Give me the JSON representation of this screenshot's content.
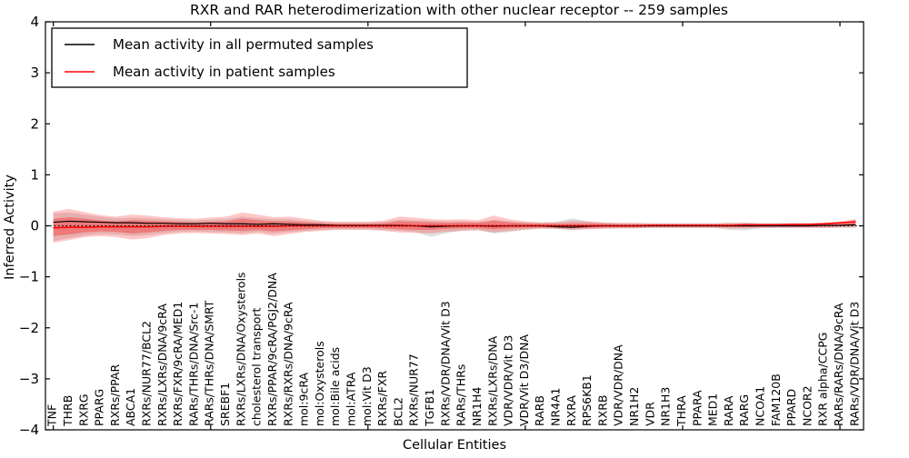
{
  "chart_data": {
    "type": "line",
    "title": "RXR and RAR heterodimerization with other nuclear receptor -- 259 samples",
    "xlabel": "Cellular Entities",
    "ylabel": "Inferred Activity",
    "ylim": [
      -4,
      4
    ],
    "yticks": [
      -4,
      -3,
      -2,
      -1,
      0,
      1,
      2,
      3,
      4
    ],
    "xtick_every": 10,
    "grid": false,
    "legend": {
      "position": "upper left",
      "entries": [
        {
          "label": "Mean activity in all permuted samples",
          "color": "#000000"
        },
        {
          "label": "Mean activity in patient samples",
          "color": "#ff0000"
        }
      ]
    },
    "zero_line": {
      "style": "dotted",
      "color": "#000000",
      "y": 0
    },
    "categories": [
      "TNF",
      "THRB",
      "RXRG",
      "PPARG",
      "RXRs/PPAR",
      "ABCA1",
      "RXRs/NUR77/BCL2",
      "RXRs/LXRs/DNA/9cRA",
      "RXRs/FXR/9cRA/MED1",
      "RARs/THRs/DNA/Src-1",
      "RARs/THRs/DNA/SMRT",
      "SREBF1",
      "RXRs/LXRs/DNA/Oxysterols",
      "cholesterol transport",
      "RXRs/PPAR/9cRA/PGJ2/DNA",
      "RXRs/RXRs/DNA/9cRA",
      "mol:9cRA",
      "mol:Oxysterols",
      "mol:Bile acids",
      "mol:ATRA",
      "mol:Vit D3",
      "RXRs/FXR",
      "BCL2",
      "RXRs/NUR77",
      "TGFB1",
      "RXRs/VDR/DNA/Vit D3",
      "RARs/THRs",
      "NR1H4",
      "RXRs/LXRs/DNA",
      "VDR/VDR/Vit D3",
      "VDR/Vit D3/DNA",
      "RARB",
      "NR4A1",
      "RXRA",
      "RPS6KB1",
      "RXRB",
      "VDR/VDR/DNA",
      "NR1H2",
      "VDR",
      "NR1H3",
      "THRA",
      "PPARA",
      "MED1",
      "RARA",
      "RARG",
      "NCOA1",
      "FAM120B",
      "PPARD",
      "NCOR2",
      "RXR alpha/CCPG",
      "RARs/RARs/DNA/9cRA",
      "RARs/VDR/DNA/Vit D3"
    ],
    "series": [
      {
        "name": "Mean activity in all permuted samples",
        "color": "#000000",
        "width": 1.2,
        "values": [
          0.07,
          0.09,
          0.08,
          0.07,
          0.06,
          0.06,
          0.05,
          0.05,
          0.04,
          0.04,
          0.05,
          0.04,
          0.04,
          0.03,
          0.04,
          0.03,
          0.02,
          0.02,
          0.01,
          0.01,
          0.01,
          0.01,
          0.01,
          0.0,
          -0.02,
          -0.01,
          0.0,
          0.0,
          -0.01,
          0.0,
          0.0,
          0.0,
          -0.02,
          -0.03,
          -0.01,
          0.0,
          0.0,
          0.0,
          0.0,
          0.0,
          0.0,
          0.0,
          0.0,
          0.0,
          0.0,
          0.0,
          0.0,
          0.0,
          0.0,
          0.01,
          0.01,
          0.02
        ]
      },
      {
        "name": "Mean activity in patient samples",
        "color": "#ff0000",
        "width": 1.5,
        "values": [
          -0.04,
          -0.03,
          -0.03,
          -0.02,
          -0.02,
          -0.02,
          -0.02,
          -0.01,
          -0.01,
          -0.01,
          -0.01,
          -0.01,
          -0.01,
          -0.01,
          -0.01,
          0.0,
          0.0,
          0.0,
          0.0,
          0.0,
          0.0,
          0.0,
          0.0,
          0.0,
          0.0,
          0.0,
          0.0,
          0.0,
          0.0,
          0.0,
          0.0,
          0.0,
          0.0,
          0.0,
          0.0,
          0.0,
          0.0,
          0.0,
          0.01,
          0.01,
          0.01,
          0.01,
          0.01,
          0.01,
          0.02,
          0.02,
          0.02,
          0.03,
          0.03,
          0.04,
          0.06,
          0.08
        ]
      }
    ],
    "bands": [
      {
        "name": "permuted-samples-range",
        "color": "#999999",
        "opacity": 0.3,
        "upper": [
          0.25,
          0.26,
          0.22,
          0.18,
          0.15,
          0.16,
          0.15,
          0.13,
          0.12,
          0.11,
          0.12,
          0.13,
          0.18,
          0.15,
          0.13,
          0.13,
          0.1,
          0.08,
          0.07,
          0.07,
          0.07,
          0.08,
          0.12,
          0.11,
          0.1,
          0.09,
          0.09,
          0.08,
          0.12,
          0.09,
          0.07,
          0.06,
          0.08,
          0.15,
          0.08,
          0.06,
          0.05,
          0.05,
          0.05,
          0.05,
          0.05,
          0.05,
          0.05,
          0.06,
          0.06,
          0.05,
          0.05,
          0.05,
          0.05,
          0.05,
          0.05,
          0.06
        ],
        "lower": [
          -0.3,
          -0.24,
          -0.19,
          -0.16,
          -0.17,
          -0.2,
          -0.18,
          -0.14,
          -0.12,
          -0.11,
          -0.12,
          -0.13,
          -0.14,
          -0.12,
          -0.15,
          -0.12,
          -0.1,
          -0.08,
          -0.07,
          -0.07,
          -0.07,
          -0.08,
          -0.1,
          -0.12,
          -0.22,
          -0.14,
          -0.09,
          -0.08,
          -0.15,
          -0.12,
          -0.07,
          -0.05,
          -0.06,
          -0.08,
          -0.06,
          -0.05,
          -0.05,
          -0.05,
          -0.04,
          -0.04,
          -0.04,
          -0.04,
          -0.04,
          -0.08,
          -0.09,
          -0.05,
          -0.04,
          -0.04,
          -0.04,
          -0.04,
          -0.04,
          -0.05
        ]
      },
      {
        "name": "patient-samples-range-outer",
        "color": "#ff0000",
        "opacity": 0.22,
        "upper": [
          0.28,
          0.33,
          0.27,
          0.21,
          0.18,
          0.22,
          0.2,
          0.17,
          0.15,
          0.14,
          0.16,
          0.18,
          0.26,
          0.22,
          0.17,
          0.18,
          0.14,
          0.1,
          0.08,
          0.08,
          0.08,
          0.1,
          0.18,
          0.16,
          0.13,
          0.12,
          0.13,
          0.11,
          0.2,
          0.13,
          0.09,
          0.07,
          0.07,
          0.1,
          0.09,
          0.07,
          0.06,
          0.06,
          0.05,
          0.05,
          0.05,
          0.05,
          0.05,
          0.06,
          0.06,
          0.05,
          0.05,
          0.05,
          0.05,
          0.06,
          0.08,
          0.14
        ],
        "lower": [
          -0.33,
          -0.28,
          -0.22,
          -0.2,
          -0.22,
          -0.27,
          -0.24,
          -0.18,
          -0.15,
          -0.14,
          -0.15,
          -0.16,
          -0.18,
          -0.15,
          -0.2,
          -0.16,
          -0.12,
          -0.1,
          -0.08,
          -0.08,
          -0.08,
          -0.1,
          -0.13,
          -0.14,
          -0.15,
          -0.12,
          -0.1,
          -0.09,
          -0.13,
          -0.1,
          -0.08,
          -0.06,
          -0.06,
          -0.08,
          -0.07,
          -0.06,
          -0.05,
          -0.05,
          -0.04,
          -0.04,
          -0.04,
          -0.04,
          -0.04,
          -0.05,
          -0.05,
          -0.04,
          -0.04,
          -0.04,
          -0.04,
          -0.04,
          -0.03,
          -0.02
        ]
      },
      {
        "name": "patient-samples-range-inner",
        "color": "#ff0000",
        "opacity": 0.3,
        "upper": [
          0.14,
          0.17,
          0.14,
          0.11,
          0.09,
          0.11,
          0.1,
          0.09,
          0.08,
          0.07,
          0.08,
          0.09,
          0.14,
          0.11,
          0.09,
          0.09,
          0.07,
          0.05,
          0.04,
          0.04,
          0.04,
          0.05,
          0.09,
          0.08,
          0.07,
          0.06,
          0.07,
          0.06,
          0.1,
          0.07,
          0.05,
          0.04,
          0.04,
          0.05,
          0.05,
          0.04,
          0.03,
          0.03,
          0.03,
          0.03,
          0.03,
          0.03,
          0.03,
          0.03,
          0.03,
          0.03,
          0.03,
          0.03,
          0.03,
          0.04,
          0.05,
          0.11
        ],
        "lower": [
          -0.2,
          -0.17,
          -0.13,
          -0.11,
          -0.12,
          -0.15,
          -0.13,
          -0.1,
          -0.08,
          -0.08,
          -0.08,
          -0.09,
          -0.1,
          -0.08,
          -0.11,
          -0.09,
          -0.07,
          -0.05,
          -0.04,
          -0.04,
          -0.04,
          -0.05,
          -0.07,
          -0.08,
          -0.08,
          -0.06,
          -0.05,
          -0.05,
          -0.07,
          -0.05,
          -0.04,
          -0.03,
          -0.03,
          -0.04,
          -0.04,
          -0.03,
          -0.03,
          -0.03,
          -0.02,
          -0.02,
          -0.02,
          -0.02,
          -0.02,
          -0.03,
          -0.03,
          -0.02,
          -0.02,
          -0.02,
          -0.02,
          -0.02,
          -0.01,
          0.01
        ]
      }
    ],
    "colors": {
      "frame": "#000000",
      "background": "#ffffff"
    }
  }
}
